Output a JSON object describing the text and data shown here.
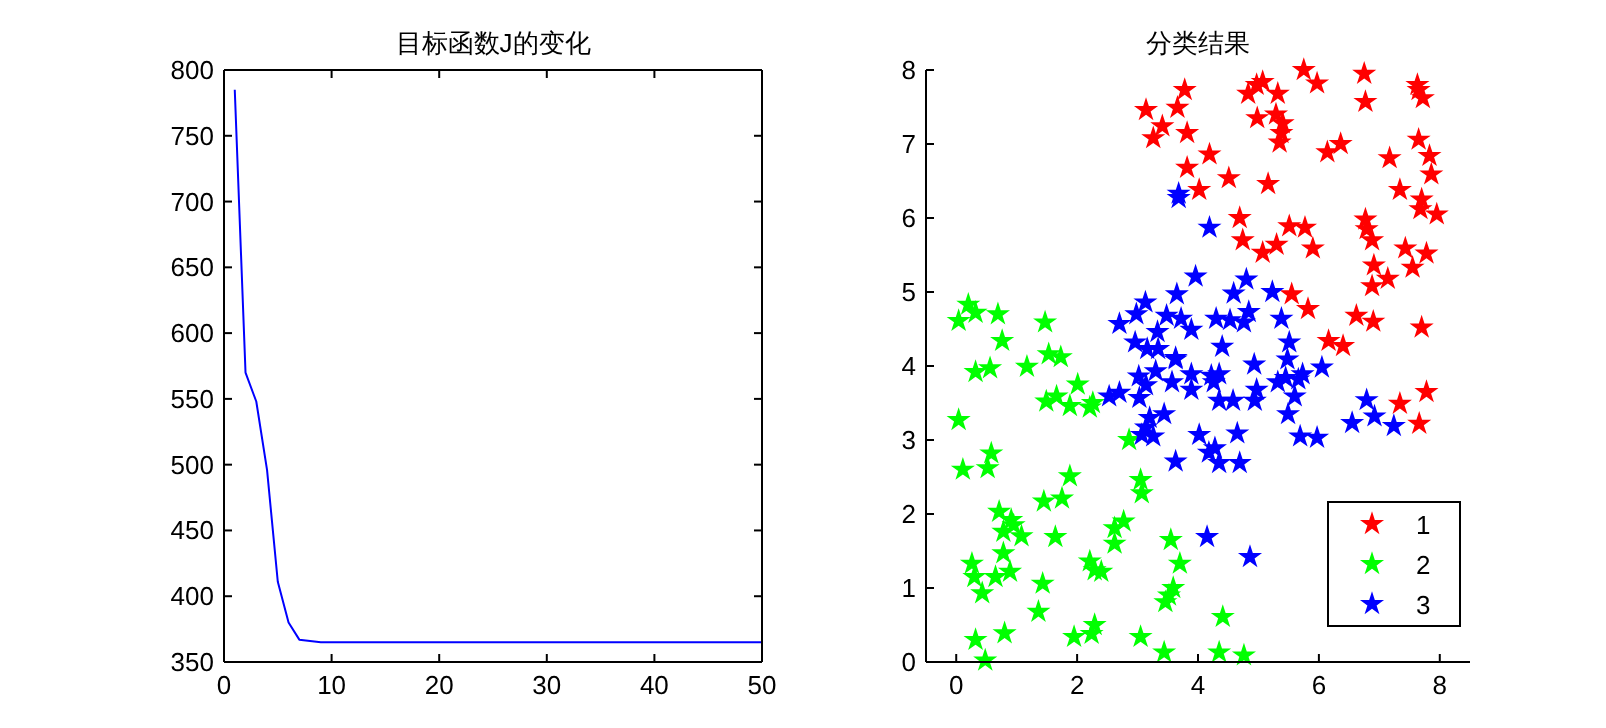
{
  "chart_data": [
    {
      "type": "line",
      "title": "目标函数J的变化",
      "xlim": [
        0,
        50
      ],
      "xticks": [
        0,
        10,
        20,
        30,
        40,
        50
      ],
      "ylim": [
        350,
        800
      ],
      "yticks": [
        350,
        400,
        450,
        500,
        550,
        600,
        650,
        700,
        750,
        800
      ],
      "grid": false,
      "legend": false,
      "marker": "none",
      "line_style": "solid",
      "series": [
        {
          "color": "#0000ff",
          "x": [
            1,
            2,
            3,
            4,
            5,
            6,
            7,
            8,
            9,
            10,
            50
          ],
          "values": [
            785,
            570,
            548,
            496,
            411,
            380,
            367,
            366,
            365,
            365,
            365
          ]
        }
      ]
    },
    {
      "type": "scatter",
      "title": "分类结果",
      "xlim": [
        -0.5,
        8.5
      ],
      "xticks": [
        0,
        2,
        4,
        6,
        8
      ],
      "ylim": [
        0,
        8
      ],
      "yticks": [
        0,
        1,
        2,
        3,
        4,
        5,
        6,
        7,
        8
      ],
      "grid": false,
      "legend": "bottom right",
      "marker": "star",
      "series": [
        {
          "name": "1",
          "color": "#ff0000",
          "x": [
            3.14,
            3.26,
            3.41,
            3.66,
            3.78,
            3.82,
            3.82,
            4.02,
            4.19,
            4.51,
            4.69,
            4.74,
            4.83,
            4.98,
            4.97,
            5.07,
            5.07,
            5.16,
            5.3,
            5.32,
            5.29,
            5.4,
            5.38,
            5.35,
            5.51,
            5.55,
            5.75,
            5.77,
            5.82,
            5.9,
            5.97,
            6.14,
            6.16,
            6.36,
            6.4,
            6.62,
            6.75,
            6.77,
            6.77,
            6.79,
            6.88,
            6.9,
            6.91,
            6.88,
            7.14,
            7.17,
            7.34,
            7.43,
            7.55,
            7.63,
            7.65,
            7.72,
            7.65,
            7.7,
            7.68,
            7.78,
            7.83,
            7.86,
            7.95,
            7.7,
            7.34,
            7.66,
            7.78
          ],
          "values": [
            7.46,
            7.08,
            7.24,
            7.49,
            7.73,
            7.15,
            6.68,
            6.38,
            6.86,
            6.54,
            6.0,
            5.7,
            7.68,
            7.35,
            7.8,
            7.84,
            5.53,
            6.46,
            5.64,
            7.68,
            7.4,
            7.28,
            7.15,
            7.02,
            5.89,
            4.97,
            8.0,
            5.87,
            4.77,
            5.59,
            7.82,
            6.89,
            4.34,
            7.0,
            4.27,
            4.68,
            7.95,
            7.57,
            5.98,
            5.85,
            5.7,
            4.6,
            5.36,
            5.08,
            5.18,
            6.81,
            6.38,
            5.59,
            5.33,
            7.8,
            7.73,
            7.62,
            7.06,
            6.25,
            6.12,
            5.52,
            6.84,
            6.59,
            6.05,
            4.52,
            3.49,
            3.22,
            3.65
          ]
        },
        {
          "name": "2",
          "color": "#00ff00",
          "x": [
            0.04,
            0.2,
            0.32,
            0.69,
            0.76,
            1.47,
            1.53,
            1.73,
            0.32,
            0.56,
            1.17,
            0.04,
            0.11,
            0.58,
            0.52,
            1.49,
            1.66,
            1.88,
            2.01,
            2.21,
            2.26,
            2.86,
            1.88,
            1.45,
            1.75,
            0.71,
            0.91,
            0.95,
            0.78,
            1.08,
            1.64,
            0.26,
            0.3,
            0.65,
            0.78,
            0.89,
            0.43,
            1.43,
            1.36,
            2.21,
            2.29,
            2.4,
            2.62,
            2.62,
            2.77,
            3.05,
            3.07,
            3.55,
            3.7,
            3.59,
            3.52,
            3.46,
            2.29,
            2.24,
            1.95,
            0.8,
            0.32,
            0.48,
            3.05,
            3.44,
            4.35,
            4.41,
            4.76
          ],
          "values": [
            4.61,
            4.83,
            4.72,
            4.7,
            4.34,
            4.59,
            4.16,
            4.12,
            3.92,
            3.97,
            3.99,
            3.27,
            2.6,
            2.82,
            2.62,
            3.52,
            3.59,
            3.46,
            3.75,
            3.44,
            3.5,
            3.0,
            2.51,
            2.17,
            2.21,
            2.03,
            1.92,
            1.85,
            1.76,
            1.7,
            1.69,
            1.33,
            1.15,
            1.15,
            1.47,
            1.22,
            0.93,
            1.06,
            0.68,
            1.36,
            1.24,
            1.22,
            1.6,
            1.81,
            1.9,
            2.46,
            2.28,
            1.65,
            1.33,
            1.0,
            0.9,
            0.81,
            0.5,
            0.38,
            0.34,
            0.39,
            0.3,
            0.02,
            0.34,
            0.13,
            0.13,
            0.61,
            0.09
          ]
        },
        {
          "name": "3",
          "color": "#0000ff",
          "x": [
            3.68,
            3.68,
            4.19,
            2.7,
            2.96,
            2.98,
            3.13,
            3.16,
            3.33,
            3.34,
            3.48,
            3.65,
            3.72,
            3.89,
            3.63,
            3.96,
            4.3,
            4.4,
            4.53,
            4.59,
            4.8,
            4.76,
            4.84,
            5.23,
            5.38,
            5.51,
            5.48,
            4.93,
            6.05,
            2.53,
            2.7,
            3.02,
            3.14,
            3.3,
            3.03,
            3.2,
            3.14,
            3.07,
            3.26,
            3.44,
            3.63,
            3.57,
            3.63,
            3.89,
            3.89,
            4.02,
            4.18,
            4.28,
            4.35,
            4.22,
            4.26,
            4.35,
            4.35,
            4.58,
            4.65,
            4.69,
            4.94,
            4.97,
            5.32,
            5.45,
            5.49,
            5.6,
            5.66,
            5.73,
            5.69,
            5.97,
            6.55,
            6.79,
            6.92,
            7.24,
            4.15,
            4.86
          ],
          "values": [
            6.33,
            6.27,
            5.87,
            4.57,
            4.32,
            4.7,
            4.86,
            4.23,
            4.46,
            4.23,
            4.68,
            4.97,
            4.64,
            4.49,
            4.11,
            5.21,
            4.64,
            4.26,
            4.62,
            4.98,
            5.17,
            4.59,
            4.73,
            5.0,
            4.64,
            4.32,
            4.09,
            4.02,
            3.98,
            3.59,
            3.64,
            3.86,
            3.74,
            3.93,
            3.57,
            3.3,
            3.17,
            3.07,
            3.05,
            3.35,
            2.71,
            3.78,
            4.09,
            3.89,
            3.68,
            3.07,
            2.83,
            2.89,
            2.69,
            3.87,
            3.78,
            3.89,
            3.53,
            3.53,
            3.09,
            2.69,
            3.53,
            3.68,
            3.78,
            3.84,
            3.35,
            3.59,
            3.82,
            3.89,
            3.05,
            3.03,
            3.23,
            3.54,
            3.32,
            3.19,
            1.69,
            1.42
          ]
        }
      ]
    }
  ]
}
